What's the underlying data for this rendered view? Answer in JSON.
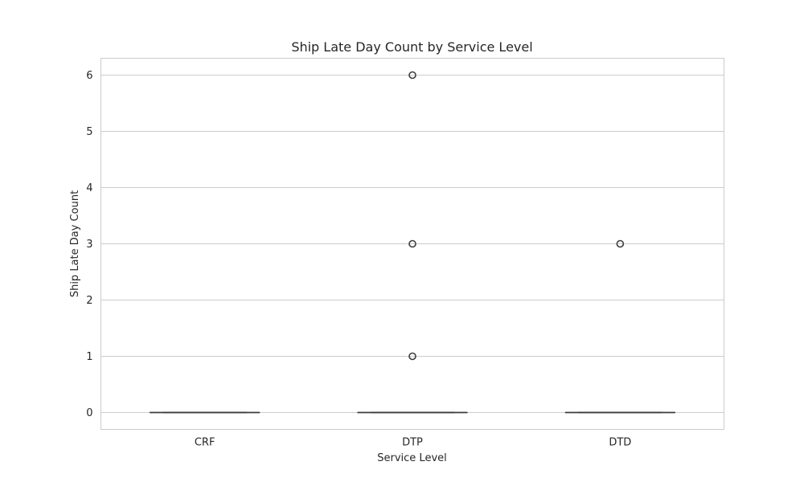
{
  "chart_data": {
    "type": "box",
    "title": "Ship Late Day Count by Service Level",
    "xlabel": "Service Level",
    "ylabel": "Ship Late Day Count",
    "categories": [
      "CRF",
      "DTP",
      "DTD"
    ],
    "ylim": [
      -0.3,
      6.3
    ],
    "yticks": [
      0,
      1,
      2,
      3,
      4,
      5,
      6
    ],
    "grid": true,
    "boxes": [
      {
        "category": "CRF",
        "min": 0,
        "q1": 0,
        "median": 0,
        "q3": 0,
        "max": 0,
        "outliers": []
      },
      {
        "category": "DTP",
        "min": 0,
        "q1": 0,
        "median": 0,
        "q3": 0,
        "max": 0,
        "outliers": [
          1,
          3,
          6
        ]
      },
      {
        "category": "DTD",
        "min": 0,
        "q1": 0,
        "median": 0,
        "q3": 0,
        "max": 0,
        "outliers": [
          3
        ]
      }
    ],
    "colors": {
      "box_line": "#3d3d3d",
      "grid": "#cccccc",
      "text": "#262626"
    }
  }
}
